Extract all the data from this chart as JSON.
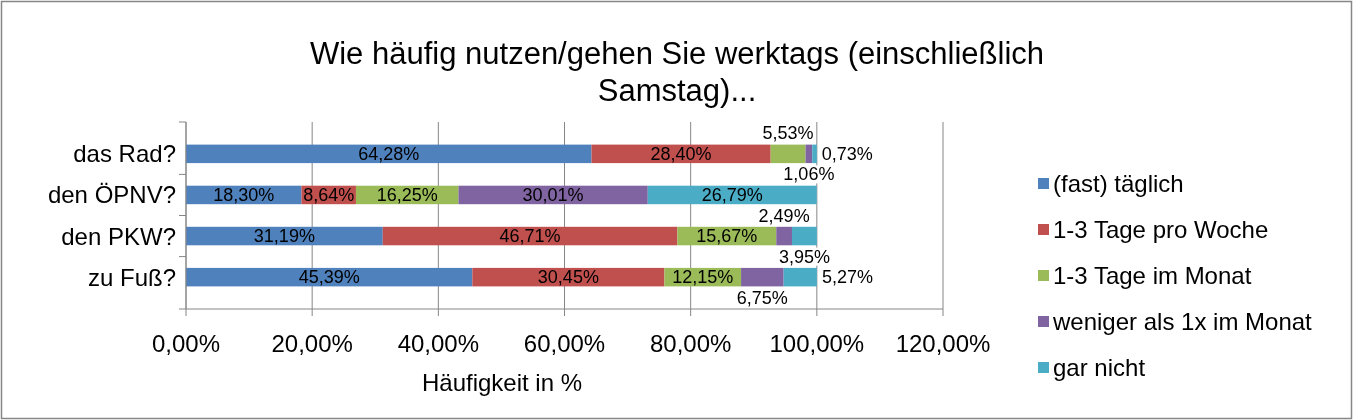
{
  "chart_data": {
    "type": "bar",
    "orientation": "horizontal",
    "stacked": true,
    "title": "Wie häufig nutzen/gehen Sie werktags (einschließlich Samstag)...",
    "xlabel": "Häufigkeit in %",
    "categories": [
      "das Rad?",
      "den ÖPNV?",
      "den PKW?",
      "zu Fuß?"
    ],
    "series": [
      {
        "name": "(fast) täglich",
        "color": "#4f81bd",
        "values": [
          64.28,
          18.3,
          31.19,
          45.39
        ],
        "value_labels": [
          "64,28%",
          "18,30%",
          "31,19%",
          "45,39%"
        ]
      },
      {
        "name": "1-3 Tage pro Woche",
        "color": "#c0504d",
        "values": [
          28.4,
          8.64,
          46.71,
          30.45
        ],
        "value_labels": [
          "28,40%",
          "8,64%",
          "46,71%",
          "30,45%"
        ]
      },
      {
        "name": "1-3 Tage im Monat",
        "color": "#9bbb59",
        "values": [
          5.53,
          16.25,
          15.67,
          12.15
        ],
        "value_labels": [
          "5,53%",
          "16,25%",
          "15,67%",
          "12,15%"
        ]
      },
      {
        "name": "weniger als 1x im Monat",
        "color": "#8064a2",
        "values": [
          1.06,
          30.01,
          2.49,
          6.75
        ],
        "value_labels": [
          "1,06%",
          "30,01%",
          "2,49%",
          "6,75%"
        ]
      },
      {
        "name": "gar nicht",
        "color": "#4bacc6",
        "values": [
          0.73,
          26.79,
          3.95,
          5.27
        ],
        "value_labels": [
          "0,73%",
          "26,79%",
          "3,95%",
          "5,27%"
        ]
      }
    ],
    "xlim": [
      0,
      120
    ],
    "xticks": [
      {
        "value": 0,
        "label": "0,00%"
      },
      {
        "value": 20,
        "label": "20,00%"
      },
      {
        "value": 40,
        "label": "40,00%"
      },
      {
        "value": 60,
        "label": "60,00%"
      },
      {
        "value": 80,
        "label": "80,00%"
      },
      {
        "value": 100,
        "label": "100,00%"
      },
      {
        "value": 120,
        "label": "120,00%"
      }
    ],
    "grid": "x",
    "legend": "right"
  }
}
